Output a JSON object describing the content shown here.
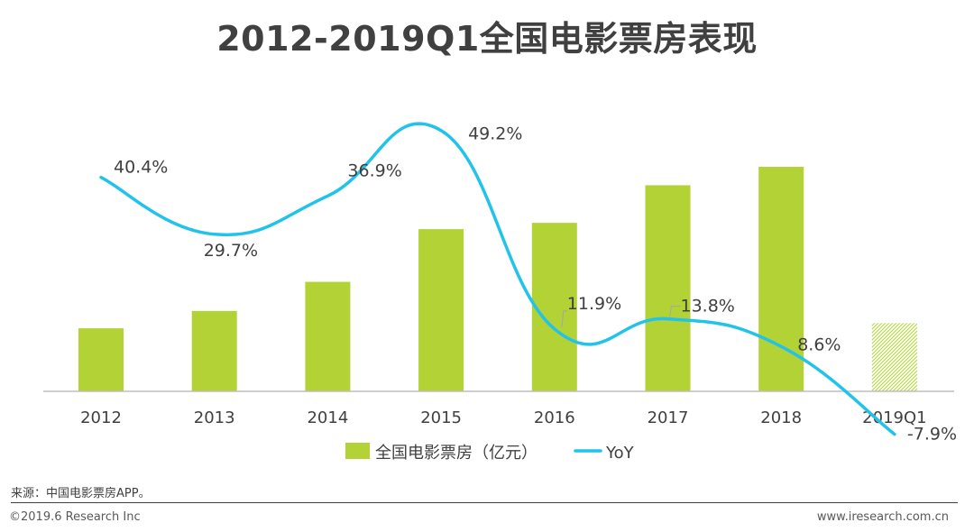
{
  "page": {
    "title": "2012-2019Q1全国电影票房表现",
    "source": "来源：中国电影票房APP。",
    "copyright": "©2019.6 Research Inc",
    "website": "www.iresearch.com.cn"
  },
  "colors": {
    "bar": "#b2d235",
    "bar_partial_hatch": "#b2d235",
    "line": "#22c3ea",
    "axis": "#bfbfbf",
    "text": "#404040"
  },
  "chart_data": {
    "type": "bar",
    "categories": [
      "2012",
      "2013",
      "2014",
      "2015",
      "2016",
      "2017",
      "2018",
      "2019Q1"
    ],
    "series": [
      {
        "name": "全国电影票房（亿元）",
        "type": "bar",
        "values": [
          171,
          218,
          297,
          440,
          457,
          559,
          609,
          185
        ],
        "style_note_last": "hatched"
      },
      {
        "name": "YoY",
        "type": "line",
        "values": [
          40.4,
          29.7,
          36.9,
          49.2,
          11.9,
          13.8,
          8.6,
          -7.9
        ],
        "labels": [
          "40.4%",
          "29.7%",
          "36.9%",
          "49.2%",
          "11.9%",
          "13.8%",
          "8.6%",
          "-7.9%"
        ]
      }
    ],
    "title": "2012-2019Q1全国电影票房表现",
    "bar_axis_range": [
      0,
      700
    ],
    "line_axis_range": [
      -25,
      60
    ],
    "grid": false,
    "legend_position": "bottom"
  }
}
